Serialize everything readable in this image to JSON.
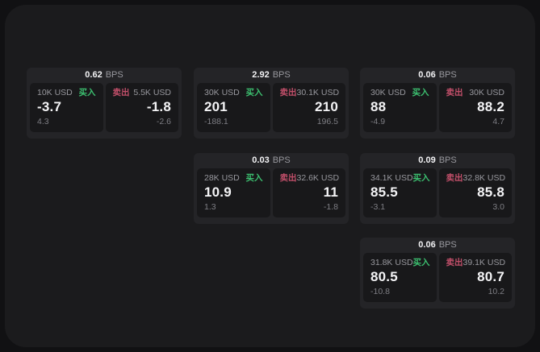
{
  "labels": {
    "bps": "BPS",
    "buy": "买入",
    "sell": "卖出"
  },
  "colors": {
    "page_bg": "#111113",
    "panel_bg": "#1b1b1d",
    "card_bg": "#242427",
    "cell_bg": "#18181a",
    "buy_green": "#3cc070",
    "sell_red": "#c24f6a",
    "label_gray": "#98989e",
    "value_white": "#f4f4f6",
    "sub_gray": "#7e7e84"
  },
  "cards": [
    {
      "bps": "0.62",
      "buy": {
        "size": "10K USD",
        "value": "-3.7",
        "sub": "4.3"
      },
      "sell": {
        "size": "5.5K USD",
        "value": "-1.8",
        "sub": "-2.6"
      }
    },
    {
      "bps": "2.92",
      "buy": {
        "size": "30K USD",
        "value": "201",
        "sub": "-188.1"
      },
      "sell": {
        "size": "30.1K USD",
        "value": "210",
        "sub": "196.5"
      }
    },
    {
      "bps": "0.06",
      "buy": {
        "size": "30K USD",
        "value": "88",
        "sub": "-4.9"
      },
      "sell": {
        "size": "30K USD",
        "value": "88.2",
        "sub": "4.7"
      }
    },
    {
      "bps": "0.03",
      "buy": {
        "size": "28K USD",
        "value": "10.9",
        "sub": "1.3"
      },
      "sell": {
        "size": "32.6K USD",
        "value": "11",
        "sub": "-1.8"
      }
    },
    {
      "bps": "0.09",
      "buy": {
        "size": "34.1K USD",
        "value": "85.5",
        "sub": "-3.1"
      },
      "sell": {
        "size": "32.8K USD",
        "value": "85.8",
        "sub": "3.0"
      }
    },
    {
      "bps": "0.06",
      "buy": {
        "size": "31.8K USD",
        "value": "80.5",
        "sub": "-10.8"
      },
      "sell": {
        "size": "39.1K USD",
        "value": "80.7",
        "sub": "10.2"
      }
    }
  ]
}
